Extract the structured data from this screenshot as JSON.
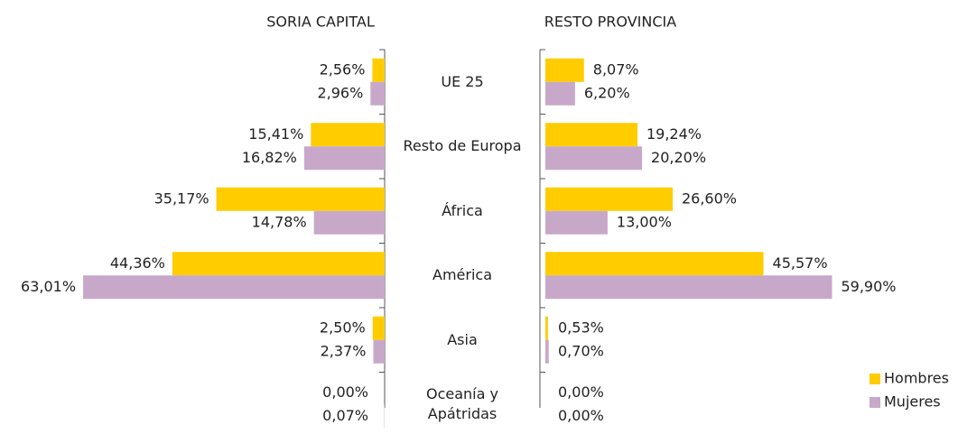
{
  "chart_data": {
    "type": "bar",
    "orientation": "horizontal",
    "categories": [
      "UE 25",
      "Resto de Europa",
      "África",
      "América",
      "Asia",
      "Oceanía y Apátridas"
    ],
    "series": [
      {
        "name": "Hombres",
        "color": "#ffcc00"
      },
      {
        "name": "Mujeres",
        "color": "#c8a8c8"
      }
    ],
    "legend": "lower right",
    "panels": [
      {
        "title": "SORIA CAPITAL",
        "direction": "left",
        "xlim": [
          0,
          70
        ],
        "series": [
          {
            "values": [
              2.56,
              15.41,
              35.17,
              44.36,
              2.5,
              0.0
            ],
            "value_labels": [
              "2,56%",
              "15,41%",
              "35,17%",
              "44,36%",
              "2,50%",
              "0,00%"
            ]
          },
          {
            "values": [
              2.96,
              16.82,
              14.78,
              63.01,
              2.37,
              0.07
            ],
            "value_labels": [
              "2,96%",
              "16,82%",
              "14,78%",
              "63,01%",
              "2,37%",
              "0,07%"
            ]
          }
        ]
      },
      {
        "title": "RESTO PROVINCIA",
        "direction": "right",
        "xlim": [
          0,
          70
        ],
        "series": [
          {
            "values": [
              8.07,
              19.24,
              26.6,
              45.57,
              0.53,
              0.0
            ],
            "value_labels": [
              "8,07%",
              "19,24%",
              "26,60%",
              "45,57%",
              "0,53%",
              "0,00%"
            ]
          },
          {
            "values": [
              6.2,
              20.2,
              13.0,
              59.9,
              0.7,
              0.0
            ],
            "value_labels": [
              "6,20%",
              "20,20%",
              "13,00%",
              "59,90%",
              "0,70%",
              "0,00%"
            ]
          }
        ]
      }
    ]
  }
}
